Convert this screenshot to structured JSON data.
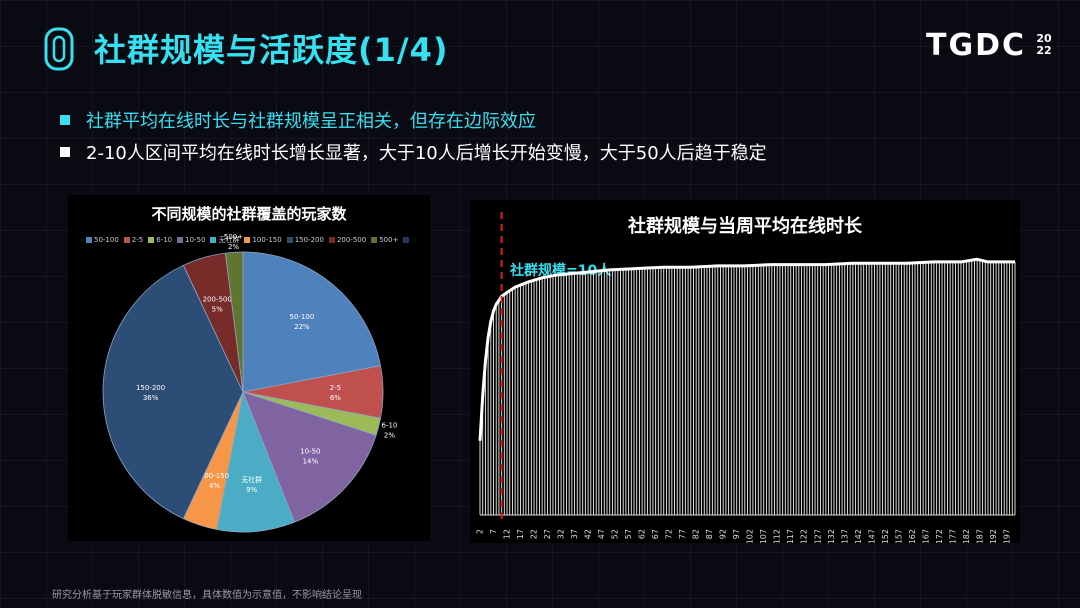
{
  "header": {
    "title": "社群规模与活跃度(1/4)",
    "brand": "TGDC",
    "brand_year_top": "20",
    "brand_year_bottom": "22"
  },
  "bullets": [
    "社群平均在线时长与社群规模呈正相关，但存在边际效应",
    "2-10人区间平均在线时长增长显著，大于10人后增长开始变慢，大于50人后趋于稳定"
  ],
  "footnote": "研究分析基于玩家群体脱敏信息，具体数值为示意值，不影响结论呈现",
  "colors": {
    "accent": "#36e0f0"
  },
  "chart_data": [
    {
      "type": "pie",
      "title": "不同规模的社群覆盖的玩家数",
      "legend": [
        "50-100",
        "2-5",
        "6-10",
        "10-50",
        "无社群",
        "100-150",
        "150-200",
        "200-500",
        "500+",
        ""
      ],
      "slices": [
        {
          "label": "50-100",
          "percent_label": "22%",
          "value": 22,
          "color": "#4f81bd"
        },
        {
          "label": "2-5",
          "percent_label": "6%",
          "value": 6,
          "color": "#c0504d"
        },
        {
          "label": "6-10",
          "percent_label": "2%",
          "value": 2,
          "color": "#9bbb59"
        },
        {
          "label": "10-50",
          "percent_label": "14%",
          "value": 14,
          "color": "#8064a2"
        },
        {
          "label": "无社群",
          "percent_label": "9%",
          "value": 9,
          "color": "#4bacc6"
        },
        {
          "label": "100-150",
          "percent_label": "4%",
          "value": 4,
          "color": "#f79646"
        },
        {
          "label": "150-200",
          "percent_label": "36%",
          "value": 36,
          "color": "#2c4d75"
        },
        {
          "label": "200-500",
          "percent_label": "5%",
          "value": 5,
          "color": "#772c2a"
        },
        {
          "label": "500+",
          "percent_label": "2%",
          "value": 2,
          "color": "#5f7530"
        }
      ]
    },
    {
      "type": "line",
      "title": "社群规模与当周平均在线时长",
      "annotation": "社群规模=10人",
      "reference_x": 10,
      "x_ticks": [
        2,
        7,
        12,
        17,
        22,
        27,
        32,
        37,
        42,
        47,
        52,
        57,
        62,
        67,
        72,
        77,
        82,
        87,
        92,
        97,
        102,
        107,
        112,
        117,
        122,
        127,
        132,
        137,
        142,
        147,
        152,
        157,
        162,
        167,
        172,
        177,
        182,
        187,
        192,
        197
      ],
      "x_range": [
        2,
        200
      ],
      "series": [
        {
          "x": [
            2,
            3,
            4,
            5,
            6,
            7,
            8,
            9,
            10,
            12,
            15,
            20,
            25,
            30,
            40,
            50,
            60,
            70,
            80,
            90,
            100,
            110,
            120,
            130,
            140,
            150,
            160,
            170,
            180,
            186,
            190,
            195,
            200
          ],
          "y": [
            28,
            45,
            58,
            67,
            73,
            77,
            79.5,
            81,
            82.5,
            84,
            86,
            88,
            89.5,
            90.5,
            91.5,
            92.5,
            93,
            93.5,
            93.5,
            94,
            94,
            94.5,
            94.5,
            94.5,
            95,
            95,
            95,
            95.5,
            95.5,
            96.5,
            95.5,
            95.5,
            95.5
          ]
        }
      ],
      "y_range": [
        0,
        100
      ]
    }
  ]
}
